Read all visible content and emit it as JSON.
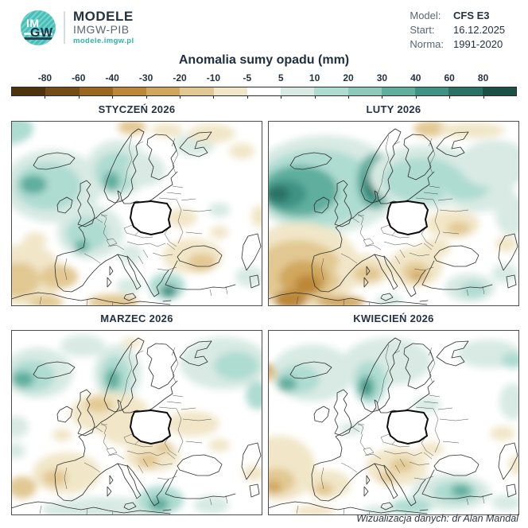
{
  "header": {
    "logo": {
      "monogram_top": "IM",
      "monogram_bottom": "GW",
      "line1": "MODELE",
      "line2": "IMGW-PIB",
      "url": "modele.imgw.pl"
    },
    "info": {
      "rows": [
        {
          "label": "Model:",
          "value": "CFS E3"
        },
        {
          "label": "Start:",
          "value": "16.12.2025"
        },
        {
          "label": "Norma:",
          "value": "1991-2020"
        }
      ]
    }
  },
  "title": "Anomalia sumy opadu (mm)",
  "colorbar": {
    "ticks": [
      "-80",
      "-60",
      "-40",
      "-30",
      "-20",
      "-10",
      "-5",
      "5",
      "10",
      "20",
      "30",
      "40",
      "60",
      "80"
    ],
    "segments": [
      "#4f330d",
      "#744c15",
      "#9a671f",
      "#bc8738",
      "#d0a75d",
      "#e2c892",
      "#f1e6c8",
      "#ffffff",
      "#d8eae3",
      "#aedcd1",
      "#8ecabb",
      "#5fae9e",
      "#3f9384",
      "#2a7265",
      "#1b5046"
    ]
  },
  "palette": {
    "p1": "#d8eae3",
    "p2": "#aedcd1",
    "p3": "#8ecabb",
    "p4": "#5fae9e",
    "p5": "#3f9384",
    "p6": "#2a7265",
    "n1": "#f1e6c8",
    "n2": "#e2c892",
    "n3": "#d0a75d",
    "n4": "#bc8738",
    "n5": "#9a671f",
    "n6": "#744c15"
  },
  "panels": [
    {
      "title": "STYCZEŃ 2026",
      "blobs": [
        [
          -6,
          10,
          34,
          20,
          "p2"
        ],
        [
          52,
          82,
          62,
          46,
          "p1"
        ],
        [
          46,
          82,
          42,
          30,
          "p2"
        ],
        [
          28,
          80,
          17,
          12,
          "p4"
        ],
        [
          134,
          60,
          40,
          36,
          "p1"
        ],
        [
          132,
          64,
          27,
          25,
          "p2"
        ],
        [
          126,
          76,
          10,
          12,
          "p4"
        ],
        [
          170,
          62,
          24,
          20,
          "p1"
        ],
        [
          230,
          30,
          26,
          14,
          "p1"
        ],
        [
          100,
          140,
          42,
          34,
          "p1"
        ],
        [
          96,
          142,
          27,
          21,
          "p2"
        ],
        [
          89,
          158,
          9,
          8,
          "p4"
        ],
        [
          150,
          168,
          15,
          12,
          "p1"
        ],
        [
          148,
          208,
          16,
          10,
          "p1"
        ],
        [
          196,
          208,
          23,
          17,
          "p2"
        ],
        [
          198,
          214,
          10,
          8,
          "p5"
        ],
        [
          262,
          112,
          14,
          9,
          "p1"
        ],
        [
          300,
          196,
          18,
          13,
          "p1"
        ],
        [
          152,
          8,
          18,
          9,
          "n2"
        ],
        [
          196,
          12,
          20,
          9,
          "n1"
        ],
        [
          252,
          16,
          30,
          12,
          "n1"
        ],
        [
          290,
          38,
          16,
          10,
          "n1"
        ],
        [
          18,
          194,
          46,
          40,
          "n1"
        ],
        [
          10,
          200,
          26,
          22,
          "n2"
        ],
        [
          60,
          196,
          24,
          15,
          "n2"
        ],
        [
          30,
          150,
          15,
          10,
          "n1"
        ],
        [
          228,
          170,
          38,
          22,
          "n1"
        ],
        [
          240,
          178,
          18,
          11,
          "n2"
        ],
        [
          214,
          122,
          20,
          12,
          "n1"
        ],
        [
          262,
          140,
          12,
          8,
          "n1"
        ],
        [
          312,
          120,
          10,
          14,
          "n1"
        ],
        [
          128,
          228,
          32,
          10,
          "n2"
        ],
        [
          44,
          228,
          22,
          8,
          "n2"
        ]
      ]
    },
    {
      "title": "LUTY 2026",
      "blobs": [
        [
          72,
          80,
          96,
          62,
          "p1"
        ],
        [
          62,
          84,
          76,
          48,
          "p2"
        ],
        [
          40,
          88,
          48,
          32,
          "p4"
        ],
        [
          22,
          92,
          26,
          18,
          "p5"
        ],
        [
          13,
          92,
          14,
          10,
          "p6"
        ],
        [
          135,
          76,
          23,
          35,
          "p4"
        ],
        [
          133,
          80,
          14,
          22,
          "p5"
        ],
        [
          132,
          82,
          8,
          12,
          "p6"
        ],
        [
          200,
          70,
          72,
          40,
          "p1"
        ],
        [
          194,
          74,
          50,
          28,
          "p2"
        ],
        [
          265,
          85,
          45,
          30,
          "p1"
        ],
        [
          250,
          80,
          30,
          20,
          "p2"
        ],
        [
          286,
          54,
          46,
          30,
          "p1"
        ],
        [
          306,
          118,
          20,
          26,
          "p1"
        ],
        [
          254,
          210,
          32,
          18,
          "p1"
        ],
        [
          258,
          212,
          17,
          10,
          "p2"
        ],
        [
          298,
          192,
          17,
          12,
          "p1"
        ],
        [
          152,
          226,
          17,
          8,
          "p1"
        ],
        [
          40,
          184,
          76,
          56,
          "n1"
        ],
        [
          38,
          190,
          56,
          40,
          "n2"
        ],
        [
          45,
          198,
          31,
          22,
          "n3"
        ],
        [
          50,
          206,
          16,
          12,
          "n4"
        ],
        [
          28,
          225,
          20,
          12,
          "n4"
        ],
        [
          120,
          188,
          35,
          20,
          "n1"
        ],
        [
          125,
          192,
          18,
          10,
          "n2"
        ],
        [
          185,
          184,
          34,
          25,
          "n1"
        ],
        [
          186,
          190,
          17,
          12,
          "n2"
        ],
        [
          188,
          196,
          8,
          6,
          "n3"
        ],
        [
          232,
          130,
          34,
          18,
          "n1"
        ],
        [
          240,
          135,
          14,
          8,
          "n2"
        ],
        [
          210,
          160,
          20,
          12,
          "n1"
        ],
        [
          205,
          10,
          22,
          10,
          "n2"
        ],
        [
          256,
          12,
          42,
          10,
          "n1"
        ],
        [
          300,
          155,
          14,
          10,
          "n1"
        ],
        [
          92,
          228,
          30,
          8,
          "n3"
        ]
      ]
    },
    {
      "title": "MARZEC 2026",
      "blobs": [
        [
          34,
          54,
          44,
          32,
          "p1"
        ],
        [
          27,
          58,
          28,
          20,
          "p2"
        ],
        [
          15,
          62,
          14,
          10,
          "p4"
        ],
        [
          90,
          20,
          28,
          14,
          "p1"
        ],
        [
          134,
          54,
          30,
          36,
          "p1"
        ],
        [
          131,
          58,
          19,
          26,
          "p2"
        ],
        [
          128,
          62,
          9,
          13,
          "p4"
        ],
        [
          268,
          42,
          56,
          33,
          "p1"
        ],
        [
          283,
          45,
          28,
          18,
          "p2"
        ],
        [
          310,
          82,
          15,
          18,
          "p2"
        ],
        [
          6,
          122,
          16,
          14,
          "p1"
        ],
        [
          6,
          152,
          12,
          10,
          "p1"
        ],
        [
          120,
          226,
          72,
          16,
          "p1"
        ],
        [
          188,
          214,
          29,
          18,
          "p2"
        ],
        [
          186,
          219,
          12,
          9,
          "p4"
        ],
        [
          252,
          220,
          22,
          12,
          "p1"
        ],
        [
          64,
          226,
          25,
          10,
          "p1"
        ],
        [
          124,
          104,
          50,
          26,
          "n1"
        ],
        [
          150,
          128,
          36,
          18,
          "n1"
        ],
        [
          110,
          94,
          18,
          9,
          "n2"
        ],
        [
          178,
          158,
          35,
          20,
          "n1"
        ],
        [
          172,
          164,
          13,
          9,
          "n2"
        ],
        [
          192,
          148,
          10,
          7,
          "n2"
        ],
        [
          70,
          180,
          43,
          26,
          "n1"
        ],
        [
          55,
          186,
          16,
          10,
          "n2"
        ],
        [
          14,
          198,
          18,
          14,
          "n2"
        ],
        [
          228,
          118,
          34,
          16,
          "n1"
        ],
        [
          262,
          145,
          14,
          8,
          "n1"
        ],
        [
          305,
          180,
          14,
          10,
          "n1"
        ],
        [
          64,
          132,
          13,
          8,
          "n1"
        ],
        [
          152,
          16,
          13,
          6,
          "n1"
        ]
      ]
    },
    {
      "title": "KWIECIEŃ 2026",
      "blobs": [
        [
          56,
          54,
          52,
          36,
          "p1"
        ],
        [
          38,
          62,
          27,
          18,
          "p2"
        ],
        [
          24,
          68,
          12,
          9,
          "p4"
        ],
        [
          150,
          40,
          56,
          30,
          "p1"
        ],
        [
          128,
          66,
          21,
          27,
          "p2"
        ],
        [
          124,
          71,
          10,
          14,
          "p4"
        ],
        [
          123,
          73,
          6,
          8,
          "p5"
        ],
        [
          278,
          30,
          40,
          18,
          "p1"
        ],
        [
          308,
          38,
          15,
          10,
          "p2"
        ],
        [
          308,
          90,
          17,
          23,
          "p1"
        ],
        [
          200,
          94,
          17,
          10,
          "p1"
        ],
        [
          105,
          124,
          15,
          8,
          "p1"
        ],
        [
          230,
          204,
          50,
          23,
          "p1"
        ],
        [
          236,
          204,
          29,
          14,
          "p2"
        ],
        [
          243,
          202,
          13,
          8,
          "p4"
        ],
        [
          180,
          222,
          26,
          10,
          "p2"
        ],
        [
          300,
          217,
          19,
          10,
          "p1"
        ],
        [
          140,
          228,
          21,
          8,
          "p1"
        ],
        [
          14,
          174,
          46,
          41,
          "n1"
        ],
        [
          11,
          190,
          23,
          16,
          "n2"
        ],
        [
          7,
          198,
          10,
          8,
          "n3"
        ],
        [
          75,
          194,
          29,
          18,
          "n1"
        ],
        [
          70,
          200,
          12,
          8,
          "n2"
        ],
        [
          162,
          172,
          39,
          24,
          "n1"
        ],
        [
          168,
          170,
          15,
          9,
          "n2"
        ],
        [
          150,
          186,
          10,
          7,
          "n2"
        ],
        [
          -2,
          54,
          13,
          11,
          "n2"
        ],
        [
          -2,
          48,
          8,
          6,
          "n3"
        ],
        [
          295,
          130,
          16,
          9,
          "n1"
        ],
        [
          312,
          170,
          10,
          12,
          "n1"
        ],
        [
          205,
          150,
          16,
          9,
          "n1"
        ],
        [
          58,
          228,
          26,
          8,
          "n1"
        ]
      ]
    }
  ],
  "attribution": "Wizualizacja danych: dr Alan Mandal",
  "colors": {
    "accent_teal": "#2fb3aa",
    "dark_navy": "#243242",
    "label_gray": "#5a6671"
  }
}
